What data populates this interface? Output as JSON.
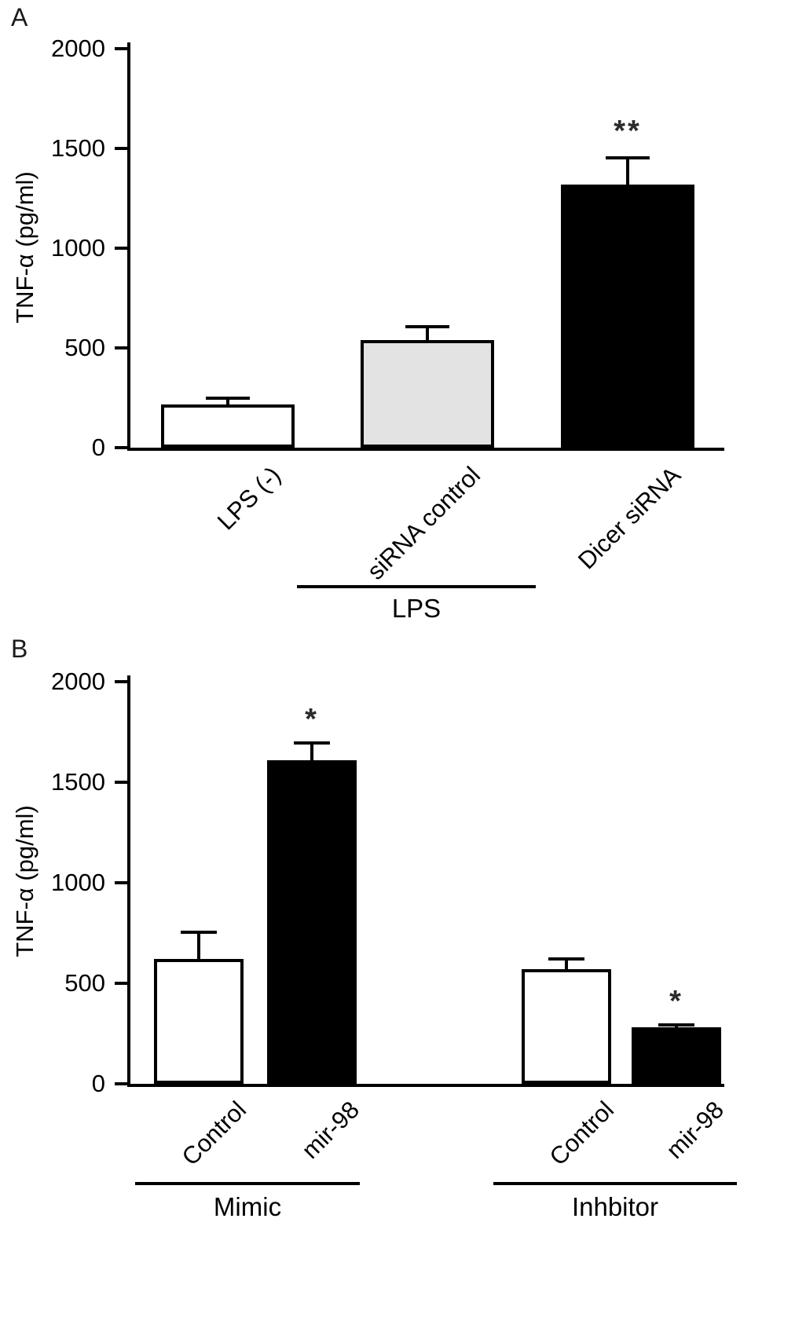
{
  "figure": {
    "background": "#ffffff",
    "bar_outline_color": "#000000"
  },
  "chart_data": [
    {
      "type": "bar",
      "panel_label": "A",
      "title": "",
      "xlabel": "",
      "ylabel": "TNF-α (pg/ml)",
      "ylim": [
        0,
        2000
      ],
      "yticks": [
        0,
        500,
        1000,
        1500,
        2000
      ],
      "grid": false,
      "legend": "none",
      "bars": [
        {
          "label": "LPS (-)",
          "value": 215,
          "error": 40,
          "fill": "#ffffff",
          "annotation": ""
        },
        {
          "label": "siRNA control",
          "value": 540,
          "error": 75,
          "fill": "#e3e3e3",
          "annotation": ""
        },
        {
          "label": "Dicer siRNA",
          "value": 1320,
          "error": 140,
          "fill": "#000000",
          "annotation": "**"
        }
      ],
      "groups": [
        {
          "label": "LPS",
          "from_bar": 1,
          "to_bar": 2
        }
      ]
    },
    {
      "type": "bar",
      "panel_label": "B",
      "title": "",
      "xlabel": "",
      "ylabel": "TNF-α (pg/ml)",
      "ylim": [
        0,
        2000
      ],
      "yticks": [
        0,
        500,
        1000,
        1500,
        2000
      ],
      "grid": false,
      "legend": "none",
      "bars": [
        {
          "label": "Control",
          "value": 620,
          "error": 140,
          "fill": "#ffffff",
          "annotation": ""
        },
        {
          "label": "mir-98",
          "value": 1610,
          "error": 95,
          "fill": "#000000",
          "annotation": "*"
        },
        {
          "label": "Control",
          "value": 570,
          "error": 60,
          "fill": "#ffffff",
          "annotation": ""
        },
        {
          "label": "mir-98",
          "value": 280,
          "error": 20,
          "fill": "#000000",
          "annotation": "*"
        }
      ],
      "groups": [
        {
          "label": "Mimic",
          "from_bar": 0,
          "to_bar": 1
        },
        {
          "label": "Inhbitor",
          "from_bar": 2,
          "to_bar": 3
        }
      ]
    }
  ]
}
